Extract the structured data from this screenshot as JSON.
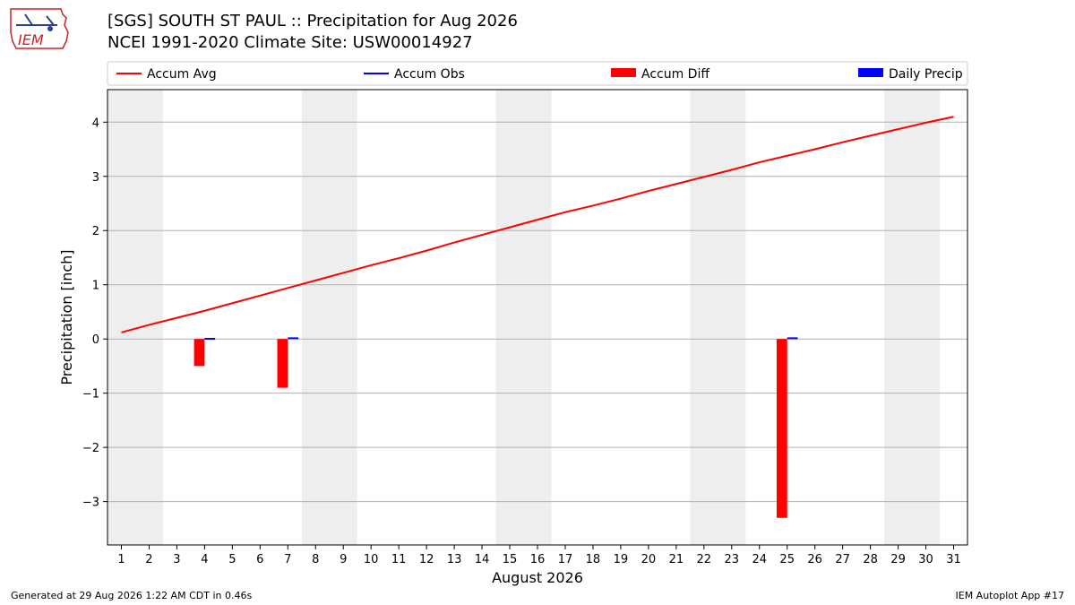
{
  "header": {
    "title": "[SGS] SOUTH ST PAUL :: Precipitation for Aug 2026",
    "subtitle": "NCEI 1991-2020 Climate Site: USW00014927",
    "logo_text": "IEM"
  },
  "footer": {
    "generated": "Generated at 29 Aug 2026 1:22 AM CDT in 0.46s",
    "app": "IEM Autoplot App #17"
  },
  "colors": {
    "accum_avg": "#ff0000",
    "accum_obs": "#0000ff",
    "accum_diff": "#ff0000",
    "daily_precip": "#0000ff",
    "weekend_band": "#eeeeee",
    "grid": "#b0b0b0"
  },
  "chart_data": {
    "type": "bar",
    "xlabel": "August 2026",
    "ylabel": "Precipitation [inch]",
    "xlim": [
      0.5,
      31.5
    ],
    "ylim": [
      -3.8,
      4.6
    ],
    "yticks": [
      -3,
      -2,
      -1,
      0,
      1,
      2,
      3,
      4
    ],
    "ytick_labels": [
      "−3",
      "−2",
      "−1",
      "0",
      "1",
      "2",
      "3",
      "4"
    ],
    "grid": "horizontal",
    "legend_position": "top",
    "legend": [
      {
        "label": "Accum Avg",
        "kind": "line",
        "color": "#ff0000"
      },
      {
        "label": "Accum Obs",
        "kind": "line",
        "color": "#0000ff"
      },
      {
        "label": "Accum Diff",
        "kind": "bar",
        "color": "#ff0000"
      },
      {
        "label": "Daily Precip",
        "kind": "bar",
        "color": "#0000ff"
      }
    ],
    "days": [
      1,
      2,
      3,
      4,
      5,
      6,
      7,
      8,
      9,
      10,
      11,
      12,
      13,
      14,
      15,
      16,
      17,
      18,
      19,
      20,
      21,
      22,
      23,
      24,
      25,
      26,
      27,
      28,
      29,
      30,
      31
    ],
    "weekend_bands": [
      [
        1,
        2
      ],
      [
        8,
        9
      ],
      [
        15,
        16
      ],
      [
        22,
        23
      ],
      [
        29,
        30
      ]
    ],
    "series": [
      {
        "name": "Accum Avg",
        "type": "line",
        "values": [
          0.12,
          0.26,
          0.39,
          0.52,
          0.66,
          0.8,
          0.94,
          1.08,
          1.22,
          1.36,
          1.49,
          1.63,
          1.78,
          1.92,
          2.06,
          2.2,
          2.34,
          2.46,
          2.59,
          2.73,
          2.86,
          2.99,
          3.12,
          3.26,
          3.38,
          3.5,
          3.63,
          3.75,
          3.87,
          3.99,
          4.1
        ]
      },
      {
        "name": "Accum Diff",
        "type": "bar",
        "points": [
          {
            "x": 4,
            "y": -0.5
          },
          {
            "x": 7,
            "y": -0.9
          },
          {
            "x": 25,
            "y": -3.3
          }
        ]
      },
      {
        "name": "Daily Precip",
        "type": "bar",
        "points": [
          {
            "x": 4,
            "y": 0.02
          },
          {
            "x": 7,
            "y": 0.03
          },
          {
            "x": 25,
            "y": 0.03
          }
        ]
      }
    ]
  }
}
